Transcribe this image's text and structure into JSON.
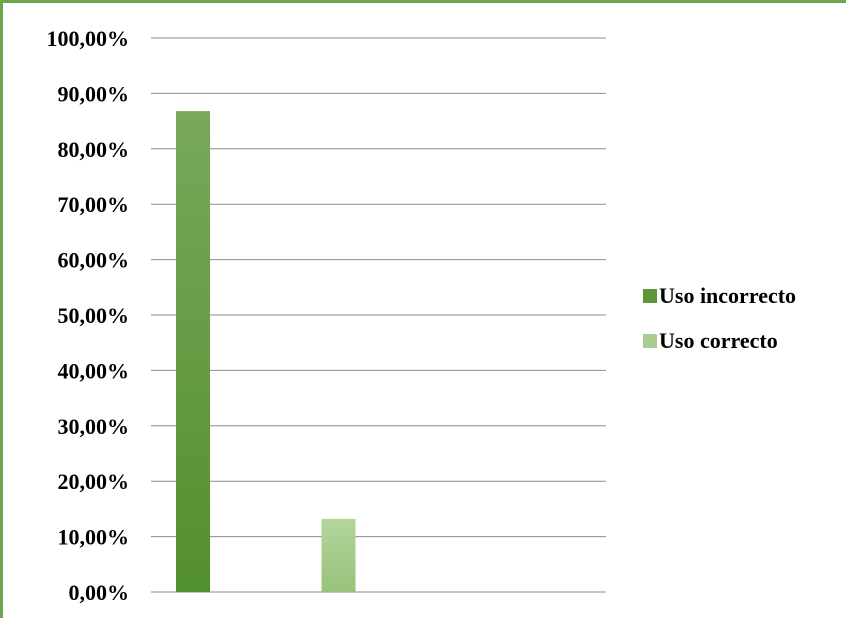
{
  "chart_data": {
    "type": "bar",
    "categories": [
      "Uso incorrecto",
      "Uso correcto"
    ],
    "values": [
      86.8,
      13.2
    ],
    "colors": {
      "Uso incorrecto": "#5c9636",
      "Uso correcto": "#a8cd8e"
    },
    "y_ticks": [
      "0,00%",
      "10,00%",
      "20,00%",
      "30,00%",
      "40,00%",
      "50,00%",
      "60,00%",
      "70,00%",
      "80,00%",
      "90,00%",
      "100,00%"
    ],
    "ylim": [
      0,
      100
    ],
    "grid": true,
    "legend": {
      "position": "right",
      "entries": [
        "Uso incorrecto",
        "Uso correcto"
      ]
    },
    "title": "",
    "xlabel": "",
    "ylabel": ""
  },
  "frame_color": "#6aa84f"
}
